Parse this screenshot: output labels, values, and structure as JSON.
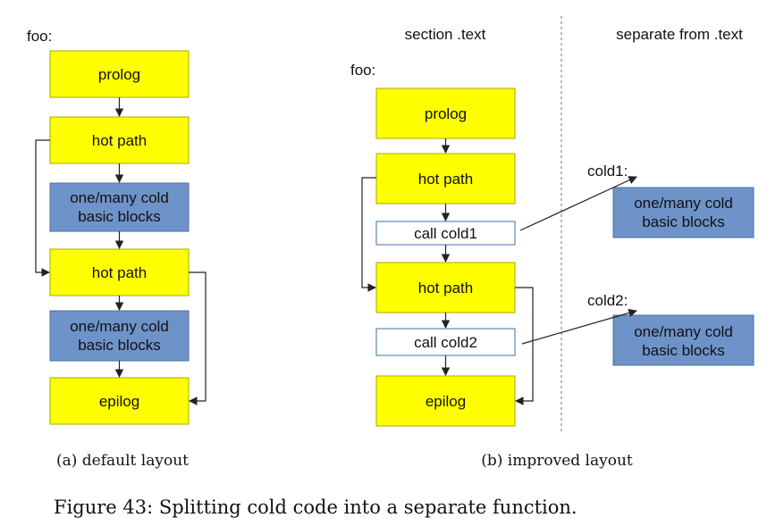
{
  "colors": {
    "hot": "#ffff00",
    "hot_border": "#a8a800",
    "cold": "#6e93c9",
    "cold_border": "#4f6f9e",
    "call": "#ffffff",
    "call_border": "#3d6fa6",
    "divider": "#888888"
  },
  "left": {
    "func_label": "foo:",
    "blocks": {
      "prolog": "prolog",
      "hot1": "hot path",
      "cold1": [
        "one/many cold",
        "basic blocks"
      ],
      "hot2": "hot path",
      "cold2": [
        "one/many cold",
        "basic blocks"
      ],
      "epilog": "epilog"
    },
    "caption": "(a) default layout"
  },
  "right": {
    "section_header": "section .text",
    "separate_header": "separate from .text",
    "func_label": "foo:",
    "blocks": {
      "prolog": "prolog",
      "hot1": "hot path",
      "call1": "call cold1",
      "hot2": "hot path",
      "call2": "call cold2",
      "epilog": "epilog"
    },
    "cold_funcs": [
      {
        "label": "cold1:",
        "text": [
          "one/many cold",
          "basic blocks"
        ]
      },
      {
        "label": "cold2:",
        "text": [
          "one/many cold",
          "basic blocks"
        ]
      }
    ],
    "caption": "(b) improved layout"
  },
  "figure_caption": "Figure 43: Splitting cold code into a separate function."
}
